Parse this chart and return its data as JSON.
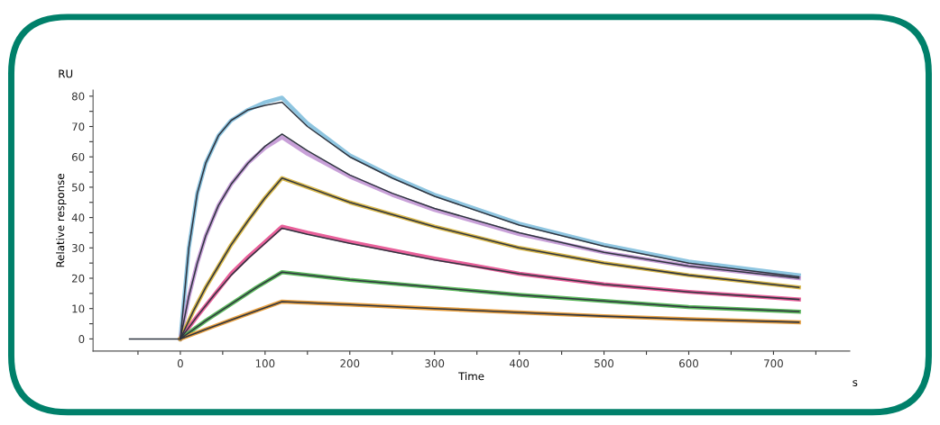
{
  "chart_data": {
    "type": "line",
    "xlabel": "Time",
    "ylabel": "Relative response",
    "annotations": [
      "RU",
      "s"
    ],
    "xlim": [
      -103,
      790
    ],
    "ylim": [
      -4,
      82
    ],
    "xticks": [
      {
        "value": -50,
        "label": null
      },
      0,
      {
        "value": 50,
        "label": null
      },
      100,
      {
        "value": 150,
        "label": null
      },
      200,
      {
        "value": 250,
        "label": null
      },
      300,
      {
        "value": 350,
        "label": null
      },
      400,
      {
        "value": 450,
        "label": null
      },
      500,
      {
        "value": 550,
        "label": null
      },
      600,
      {
        "value": 650,
        "label": null
      },
      700,
      {
        "value": 750,
        "label": null
      }
    ],
    "yticks": [
      0,
      {
        "value": 5,
        "label": null
      },
      10,
      {
        "value": 15,
        "label": null
      },
      20,
      {
        "value": 25,
        "label": null
      },
      30,
      {
        "value": 35,
        "label": null
      },
      40,
      {
        "value": 45,
        "label": null
      },
      50,
      {
        "value": 55,
        "label": null
      },
      60,
      {
        "value": 65,
        "label": null
      },
      70,
      {
        "value": 75,
        "label": null
      },
      80
    ],
    "grid": false,
    "marker": "none",
    "line_style": "solid",
    "series": [
      {
        "color": "#8ec5e0",
        "x": [
          0,
          10,
          20,
          30,
          45,
          60,
          80,
          100,
          120,
          150,
          200,
          250,
          300,
          400,
          500,
          600,
          730
        ],
        "values": [
          0,
          30,
          48,
          58,
          67,
          72,
          75.5,
          78,
          79.5,
          71,
          60.5,
          53.5,
          47.5,
          38,
          31,
          25.5,
          21
        ]
      },
      {
        "color": "#c8a0d8",
        "x": [
          0,
          10,
          20,
          30,
          45,
          60,
          80,
          100,
          120,
          150,
          200,
          250,
          300,
          400,
          500,
          600,
          730
        ],
        "values": [
          0,
          14,
          25,
          34,
          44,
          51,
          58,
          63,
          66.5,
          61,
          53.5,
          47.5,
          42.5,
          34.5,
          28.5,
          24,
          20
        ]
      },
      {
        "color": "#d9b84a",
        "x": [
          0,
          15,
          30,
          45,
          60,
          80,
          100,
          120,
          150,
          200,
          250,
          300,
          400,
          500,
          600,
          730
        ],
        "values": [
          0,
          9,
          17,
          24,
          31,
          39,
          46.5,
          53,
          50,
          45,
          41,
          37,
          30,
          25,
          21,
          17
        ]
      },
      {
        "color": "#e8609a",
        "x": [
          0,
          20,
          40,
          60,
          80,
          100,
          120,
          150,
          200,
          300,
          400,
          500,
          600,
          730
        ],
        "values": [
          0,
          7.5,
          14.5,
          21.5,
          27,
          32,
          37,
          35,
          32,
          26.5,
          21.5,
          18,
          15.5,
          13
        ]
      },
      {
        "color": "#5cb85c",
        "x": [
          0,
          30,
          60,
          90,
          120,
          200,
          300,
          400,
          500,
          600,
          730
        ],
        "values": [
          0,
          6,
          11.5,
          17,
          22,
          19.5,
          17,
          14.5,
          12.5,
          10.5,
          9
        ]
      },
      {
        "color": "#e8a040",
        "x": [
          0,
          40,
          80,
          120,
          200,
          300,
          400,
          500,
          600,
          730
        ],
        "values": [
          0,
          4.2,
          8.3,
          12.3,
          11.3,
          10,
          8.7,
          7.5,
          6.5,
          5.5
        ]
      },
      {
        "color": "#2f3540",
        "x": [
          -60,
          0,
          10,
          20,
          30,
          45,
          60,
          80,
          100,
          120,
          150,
          200,
          250,
          300,
          400,
          500,
          600,
          730
        ],
        "values": [
          0,
          0,
          30,
          48,
          58,
          67,
          72,
          75.5,
          77,
          78,
          70,
          60,
          53,
          47,
          37.5,
          30.5,
          25,
          20.5
        ]
      },
      {
        "color": "#2f3540",
        "x": [
          0,
          10,
          20,
          30,
          45,
          60,
          80,
          100,
          120,
          150,
          200,
          250,
          300,
          400,
          500,
          600,
          730
        ],
        "values": [
          0,
          14,
          25,
          34,
          44,
          51,
          58,
          63.5,
          67.5,
          62,
          54,
          48,
          43,
          35,
          28.5,
          24,
          20
        ]
      },
      {
        "color": "#2f3540",
        "x": [
          0,
          15,
          30,
          45,
          60,
          80,
          100,
          120,
          150,
          200,
          250,
          300,
          400,
          500,
          600,
          730
        ],
        "values": [
          0,
          9,
          17,
          24,
          31,
          39,
          46.5,
          53,
          50,
          45,
          41,
          37,
          30,
          25,
          21,
          17
        ]
      },
      {
        "color": "#2f3540",
        "x": [
          0,
          20,
          40,
          60,
          80,
          100,
          120,
          150,
          200,
          300,
          400,
          500,
          600,
          730
        ],
        "values": [
          0,
          7.5,
          14.5,
          21,
          26.5,
          31.5,
          36.5,
          34.5,
          31.5,
          26,
          21.5,
          18,
          15.5,
          13
        ]
      },
      {
        "color": "#2f3540",
        "x": [
          0,
          30,
          60,
          90,
          120,
          200,
          300,
          400,
          500,
          600,
          730
        ],
        "values": [
          0,
          6,
          11.5,
          17,
          22,
          19.5,
          17,
          14.5,
          12.5,
          10.5,
          9
        ]
      },
      {
        "color": "#2f3540",
        "x": [
          0,
          40,
          80,
          120,
          200,
          300,
          400,
          500,
          600,
          730
        ],
        "values": [
          0,
          4.2,
          8.3,
          12.3,
          11.3,
          10,
          8.7,
          7.5,
          6.5,
          5.5
        ]
      }
    ]
  }
}
